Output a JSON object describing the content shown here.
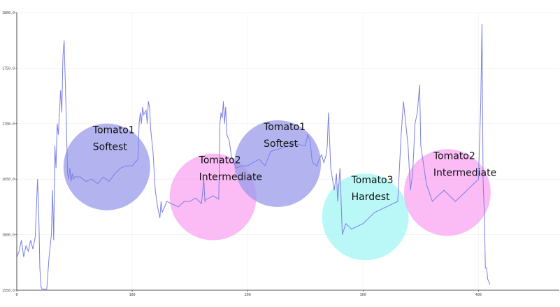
{
  "chart_data": {
    "type": "line",
    "title": "",
    "xlabel": "",
    "ylabel": "",
    "xlim": [
      0,
      470
    ],
    "ylim": [
      1550,
      1800
    ],
    "x_ticks": [
      0,
      100,
      200,
      300,
      400
    ],
    "x_tick_labels": [
      "0",
      "100",
      "200",
      "300",
      "400"
    ],
    "y_ticks": [
      1550,
      1600,
      1650,
      1700,
      1750,
      1800
    ],
    "y_tick_labels": [
      "1550.0",
      "1600.0",
      "1650.0",
      "1700.0",
      "1750.0",
      "1800.0"
    ],
    "grid": true,
    "line_color": "#7a7ee6",
    "series": [
      {
        "x": [
          0,
          2,
          4,
          6,
          8,
          10,
          12,
          14,
          16,
          18,
          19,
          20,
          21,
          22,
          24,
          26,
          28,
          30,
          31,
          32,
          33,
          34,
          35,
          36,
          38,
          39,
          40,
          41,
          42,
          43,
          44,
          45,
          46,
          47,
          48,
          49,
          50,
          55,
          60,
          65,
          70,
          75,
          80,
          85,
          90,
          95,
          100,
          105,
          106,
          107,
          108,
          109,
          110,
          111,
          112,
          113,
          114,
          115,
          116,
          118,
          120,
          122,
          124,
          125,
          126,
          130,
          140,
          145,
          150,
          155,
          160,
          162,
          163,
          164,
          165,
          170,
          175,
          176,
          177,
          178,
          179,
          180,
          181,
          182,
          184,
          186,
          188,
          190,
          195,
          200,
          210,
          215,
          220,
          230,
          240,
          250,
          252,
          254,
          256,
          260,
          262,
          264,
          266,
          267,
          268,
          269,
          270,
          272,
          275,
          277,
          278,
          280,
          282,
          285,
          290,
          300,
          310,
          320,
          330,
          333,
          335,
          337,
          339,
          341,
          343,
          345,
          347,
          349,
          350,
          355,
          360,
          370,
          380,
          390,
          400,
          402,
          403,
          404,
          405,
          406,
          407,
          408,
          410
        ],
        "y": [
          1580,
          1585,
          1595,
          1580,
          1590,
          1585,
          1595,
          1587,
          1598,
          1650,
          1620,
          1570,
          1553,
          1551,
          1551,
          1551,
          1580,
          1600,
          1640,
          1595,
          1680,
          1660,
          1700,
          1690,
          1730,
          1710,
          1760,
          1775,
          1740,
          1700,
          1655,
          1650,
          1660,
          1648,
          1655,
          1650,
          1652,
          1652,
          1648,
          1650,
          1646,
          1652,
          1648,
          1655,
          1660,
          1662,
          1662,
          1668,
          1700,
          1710,
          1700,
          1715,
          1708,
          1710,
          1712,
          1700,
          1720,
          1715,
          1695,
          1675,
          1640,
          1625,
          1615,
          1630,
          1620,
          1630,
          1625,
          1630,
          1630,
          1633,
          1628,
          1650,
          1630,
          1632,
          1632,
          1635,
          1632,
          1700,
          1710,
          1705,
          1720,
          1700,
          1715,
          1690,
          1685,
          1670,
          1665,
          1660,
          1662,
          1662,
          1668,
          1662,
          1675,
          1678,
          1682,
          1680,
          1690,
          1685,
          1665,
          1662,
          1668,
          1672,
          1665,
          1668,
          1672,
          1680,
          1710,
          1660,
          1640,
          1655,
          1630,
          1660,
          1600,
          1610,
          1605,
          1610,
          1620,
          1625,
          1630,
          1690,
          1720,
          1700,
          1680,
          1640,
          1655,
          1700,
          1710,
          1735,
          1680,
          1645,
          1630,
          1640,
          1630,
          1640,
          1650,
          1720,
          1790,
          1650,
          1620,
          1570,
          1570,
          1560,
          1555
        ]
      }
    ],
    "annotations": [
      {
        "line1": "Tomato1",
        "line2": "Softest",
        "cx": 78,
        "cy": 1661,
        "color": "#9a9bea"
      },
      {
        "line1": "Tomato2",
        "line2": "Intermediate",
        "cx": 170,
        "cy": 1634,
        "color": "#f9a4f2"
      },
      {
        "line1": "Tomato1",
        "line2": "Softest",
        "cx": 226,
        "cy": 1664,
        "color": "#9a9bea"
      },
      {
        "line1": "Tomato3",
        "line2": "Hardest",
        "cx": 302,
        "cy": 1616,
        "color": "#a3f5f5"
      },
      {
        "line1": "Tomato2",
        "line2": "Intermediate",
        "cx": 373,
        "cy": 1638,
        "color": "#f9a4f2"
      }
    ]
  }
}
